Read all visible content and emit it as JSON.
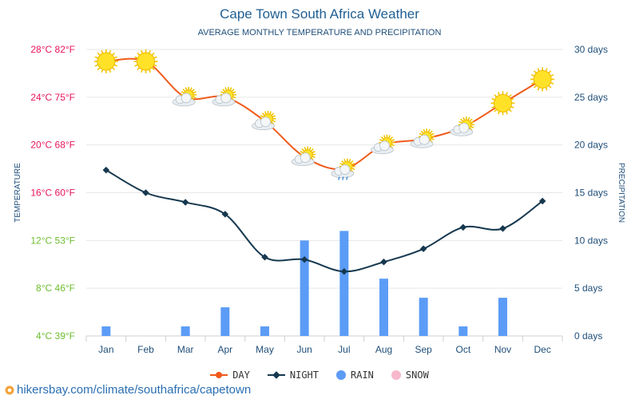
{
  "chart_data": {
    "type": "line",
    "title": "Cape Town South Africa Weather",
    "subtitle": "AVERAGE MONTHLY TEMPERATURE AND PRECIPITATION",
    "categories": [
      "Jan",
      "Feb",
      "Mar",
      "Apr",
      "May",
      "Jun",
      "Jul",
      "Aug",
      "Sep",
      "Oct",
      "Nov",
      "Dec"
    ],
    "series": [
      {
        "name": "DAY",
        "type": "line",
        "color": "#f05a1a",
        "values": [
          27,
          27,
          24,
          24,
          22,
          19,
          18,
          20,
          20.5,
          21.5,
          23.5,
          25.5
        ]
      },
      {
        "name": "NIGHT",
        "type": "line",
        "color": "#16384f",
        "values": [
          17.9,
          16,
          15.2,
          14.2,
          10.6,
          10.4,
          9.4,
          10.2,
          11.3,
          13.1,
          13,
          15.3
        ]
      },
      {
        "name": "RAIN",
        "type": "bar",
        "color": "#5b9cf6",
        "values": [
          1,
          0,
          1,
          3,
          1,
          10,
          11,
          6,
          4,
          1,
          4,
          0
        ]
      },
      {
        "name": "SNOW",
        "type": "bar",
        "color": "#f7b8cb",
        "values": [
          0,
          0,
          0,
          0,
          0,
          0,
          0,
          0,
          0,
          0,
          0,
          0
        ]
      }
    ],
    "weather_icons": [
      "sun",
      "sun",
      "partly-cloudy",
      "partly-cloudy",
      "partly-cloudy",
      "partly-cloudy",
      "partly-cloudy-rain",
      "partly-cloudy",
      "partly-cloudy",
      "partly-cloudy",
      "sun",
      "sun"
    ],
    "y_left": {
      "label": "TEMPERATURE",
      "range": [
        4,
        28
      ],
      "ticks": [
        {
          "value": 28,
          "label": "28°C 82°F",
          "color": "#e8155f"
        },
        {
          "value": 24,
          "label": "24°C 75°F",
          "color": "#e8155f"
        },
        {
          "value": 20,
          "label": "20°C 68°F",
          "color": "#e8155f"
        },
        {
          "value": 16,
          "label": "16°C 60°F",
          "color": "#e8155f"
        },
        {
          "value": 12,
          "label": "12°C 53°F",
          "color": "#6dbd2f"
        },
        {
          "value": 8,
          "label": "8°C 46°F",
          "color": "#6dbd2f"
        },
        {
          "value": 4,
          "label": "4°C 39°F",
          "color": "#6dbd2f"
        }
      ]
    },
    "y_right": {
      "label": "PRECIPITATION",
      "range": [
        0,
        30
      ],
      "ticks": [
        {
          "value": 30,
          "label": "30 days"
        },
        {
          "value": 25,
          "label": "25 days"
        },
        {
          "value": 20,
          "label": "20 days"
        },
        {
          "value": 15,
          "label": "15 days"
        },
        {
          "value": 10,
          "label": "10 days"
        },
        {
          "value": 5,
          "label": "5 days"
        },
        {
          "value": 0,
          "label": "0 days"
        }
      ]
    },
    "legend": [
      {
        "name": "DAY",
        "kind": "line-dot",
        "color": "#f05a1a"
      },
      {
        "name": "NIGHT",
        "kind": "line-diamond",
        "color": "#16384f"
      },
      {
        "name": "RAIN",
        "kind": "circle",
        "color": "#5b9cf6"
      },
      {
        "name": "SNOW",
        "kind": "circle",
        "color": "#f7b8cb"
      }
    ]
  },
  "footer": {
    "text": "hikersbay.com/climate/southafrica/capetown",
    "icon": "map-pin-icon"
  }
}
